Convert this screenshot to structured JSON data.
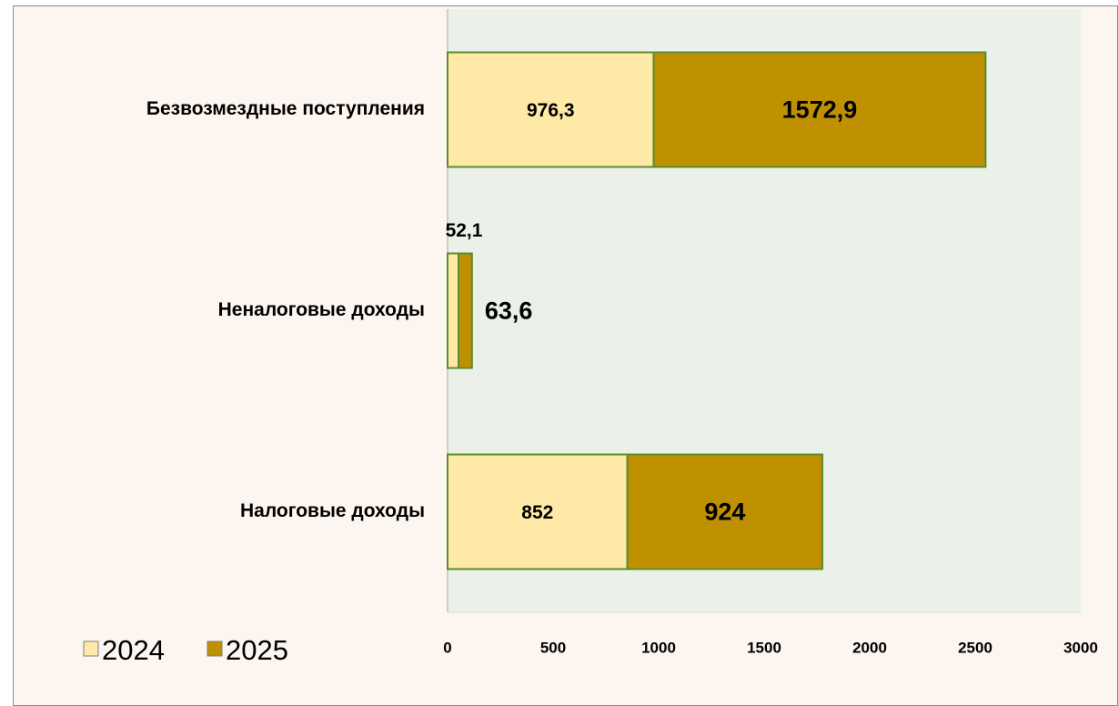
{
  "chart_data": {
    "type": "stacked-bar-horizontal",
    "categories": [
      "Безвозмездные поступления",
      "Неналоговые доходы",
      "Налоговые доходы"
    ],
    "series": [
      {
        "name": "2024",
        "color": "#fee9a6",
        "values": [
          976.3,
          52.1,
          852
        ],
        "value_labels": [
          "976,3",
          "52,1",
          "852"
        ]
      },
      {
        "name": "2025",
        "color": "#bf9000",
        "values": [
          1572.9,
          63.6,
          924
        ],
        "value_labels": [
          "1572,9",
          "63,6",
          "924"
        ]
      }
    ],
    "xlim": [
      0,
      3000
    ],
    "xticks": [
      0,
      500,
      1000,
      1500,
      2000,
      2500,
      3000
    ],
    "legend": "bottom-left"
  }
}
